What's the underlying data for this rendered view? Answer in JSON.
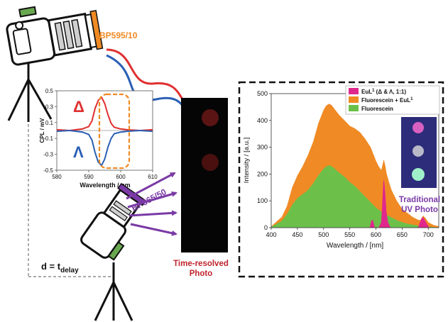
{
  "top_filter_label": "BP595/10",
  "bottom_filter_label": "BP365/50",
  "delay_label_main": "d = t",
  "delay_label_sub": "delay",
  "timeresolved_label_line1": "Time-resolved",
  "timeresolved_label_line2": "Photo",
  "uv_label_line1": "Traditional",
  "uv_label_line2": "UV Photo",
  "colors": {
    "orange": "#f08a24",
    "green": "#6cc04a",
    "magenta": "#e0288c",
    "red": "#e03030",
    "blue": "#2a5fb4",
    "purple": "#7a3aa6",
    "dark_red_label": "#c0242c",
    "camera_green": "#6aa850"
  },
  "chart_data": [
    {
      "type": "line",
      "xlabel": "Wavelength / nm",
      "ylabel": "CPL / mV",
      "xlim": [
        580,
        610
      ],
      "ylim": [
        -0.5,
        0.5
      ],
      "xticks": [
        580,
        590,
        600,
        610
      ],
      "yticks": [
        0.5,
        0.3,
        0.1,
        -0.1,
        -0.3,
        -0.5
      ],
      "annotations": [
        "Δ",
        "Λ"
      ],
      "series": [
        {
          "name": "Δ",
          "color": "#e03030",
          "x": [
            580,
            584,
            588,
            590,
            591,
            592,
            593,
            594,
            595,
            596,
            597,
            598,
            600,
            602,
            606,
            610
          ],
          "y": [
            0.01,
            0.0,
            0.02,
            0.05,
            0.12,
            0.28,
            0.38,
            0.42,
            0.34,
            0.2,
            0.09,
            0.04,
            0.02,
            0.01,
            0.0,
            0.01
          ]
        },
        {
          "name": "Λ",
          "color": "#2a5fb4",
          "x": [
            580,
            584,
            588,
            590,
            591,
            592,
            593,
            594,
            595,
            596,
            597,
            598,
            600,
            602,
            606,
            610
          ],
          "y": [
            -0.01,
            0.0,
            -0.02,
            -0.05,
            -0.12,
            -0.28,
            -0.4,
            -0.44,
            -0.36,
            -0.21,
            -0.1,
            -0.04,
            -0.02,
            -0.01,
            0.0,
            -0.01
          ]
        }
      ]
    },
    {
      "type": "area",
      "xlabel": "Wavelength / [nm]",
      "ylabel": "Intensity / [a.u.]",
      "xlim": [
        400,
        720
      ],
      "ylim": [
        0,
        500
      ],
      "xticks": [
        400,
        450,
        500,
        550,
        600,
        650,
        700
      ],
      "yticks": [
        0,
        100,
        200,
        300,
        400,
        500
      ],
      "legend_position": "top-right",
      "series": [
        {
          "name": "Fluorescein + EuL",
          "name_superscript": "1",
          "color": "#f08a24",
          "x": [
            400,
            420,
            430,
            440,
            450,
            460,
            470,
            480,
            490,
            500,
            505,
            510,
            515,
            520,
            530,
            540,
            550,
            560,
            570,
            580,
            590,
            600,
            605,
            610,
            612,
            615,
            618,
            620,
            625,
            630,
            640,
            650,
            660,
            670,
            680,
            685,
            690,
            695,
            700,
            710,
            720
          ],
          "y": [
            5,
            40,
            80,
            150,
            195,
            230,
            270,
            320,
            390,
            440,
            455,
            462,
            458,
            445,
            420,
            400,
            380,
            370,
            355,
            330,
            300,
            250,
            230,
            215,
            230,
            255,
            230,
            205,
            170,
            140,
            100,
            70,
            55,
            40,
            30,
            28,
            45,
            35,
            20,
            10,
            5
          ]
        },
        {
          "name": "Fluorescein",
          "color": "#6cc04a",
          "x": [
            400,
            420,
            430,
            440,
            450,
            460,
            470,
            480,
            490,
            500,
            505,
            510,
            515,
            520,
            530,
            540,
            550,
            560,
            570,
            580,
            590,
            600,
            610,
            620,
            630,
            640,
            650,
            660,
            670,
            680,
            690,
            700,
            710,
            720
          ],
          "y": [
            3,
            25,
            50,
            85,
            110,
            125,
            140,
            165,
            195,
            220,
            228,
            232,
            230,
            222,
            205,
            190,
            170,
            155,
            135,
            115,
            95,
            75,
            60,
            48,
            38,
            28,
            20,
            15,
            11,
            8,
            6,
            4,
            2,
            1
          ]
        },
        {
          "name": "EuL",
          "name_superscript": "1",
          "name_suffix": " (Δ & Λ, 1:1)",
          "color": "#e0288c",
          "x": [
            580,
            588,
            591,
            594,
            598,
            605,
            610,
            612,
            614,
            615,
            616,
            618,
            620,
            623,
            628,
            640,
            680,
            684,
            687,
            690,
            693,
            697,
            702
          ],
          "y": [
            0,
            0,
            25,
            30,
            0,
            0,
            20,
            90,
            165,
            180,
            170,
            120,
            60,
            20,
            0,
            0,
            0,
            20,
            35,
            40,
            30,
            15,
            0
          ]
        }
      ]
    }
  ]
}
